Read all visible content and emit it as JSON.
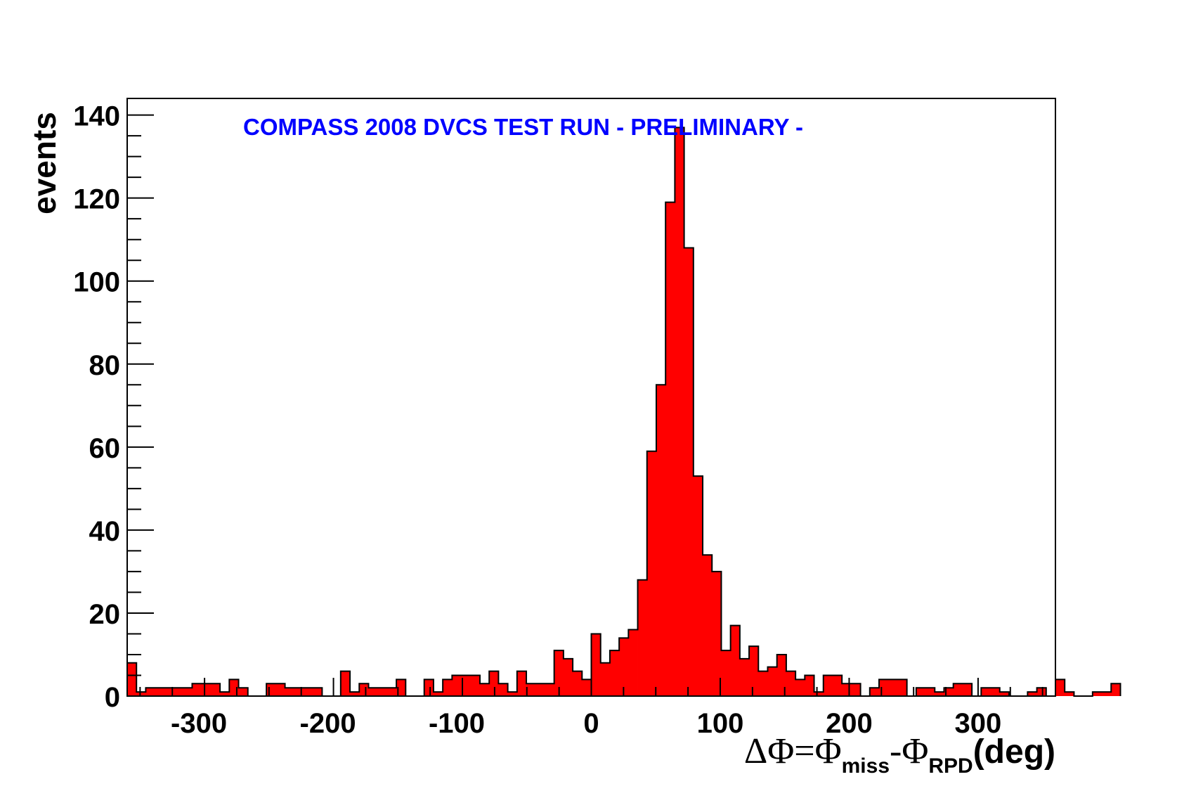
{
  "chart_data": {
    "type": "bar",
    "title": "COMPASS 2008 DVCS TEST RUN  - PRELIMINARY -",
    "ylabel": "events",
    "xlabel": {
      "prefix": "ΔΦ=Φ",
      "sub1": "miss",
      "middle": "-Φ",
      "sub2": "RPD",
      "suffix": "(deg)"
    },
    "xlim": [
      -360,
      360
    ],
    "ylim": [
      0,
      144
    ],
    "x_ticks": [
      -300,
      -200,
      -100,
      0,
      100,
      200,
      300
    ],
    "y_ticks": [
      0,
      20,
      40,
      60,
      80,
      100,
      120,
      140
    ],
    "bin_width": 7.2,
    "bin_start": -360,
    "values": [
      8,
      1,
      2,
      2,
      2,
      2,
      2,
      3,
      3,
      3,
      1,
      4,
      2,
      0,
      0,
      3,
      3,
      2,
      2,
      2,
      2,
      0,
      0,
      6,
      1,
      3,
      2,
      2,
      2,
      4,
      0,
      0,
      4,
      1,
      4,
      5,
      5,
      5,
      3,
      6,
      3,
      1,
      6,
      3,
      3,
      3,
      11,
      9,
      6,
      4,
      15,
      8,
      11,
      14,
      16,
      28,
      59,
      75,
      119,
      137,
      108,
      53,
      34,
      30,
      11,
      17,
      9,
      12,
      6,
      7,
      10,
      6,
      4,
      5,
      1,
      5,
      5,
      3,
      3,
      0,
      2,
      4,
      4,
      4,
      0,
      2,
      2,
      1,
      2,
      3,
      3,
      0,
      2,
      2,
      1,
      0,
      0,
      1,
      2,
      0,
      4,
      1,
      0,
      0,
      1,
      1,
      3
    ],
    "bar_color": "#ff0000",
    "edge_color": "#000000",
    "title_color": "#0000ff"
  }
}
